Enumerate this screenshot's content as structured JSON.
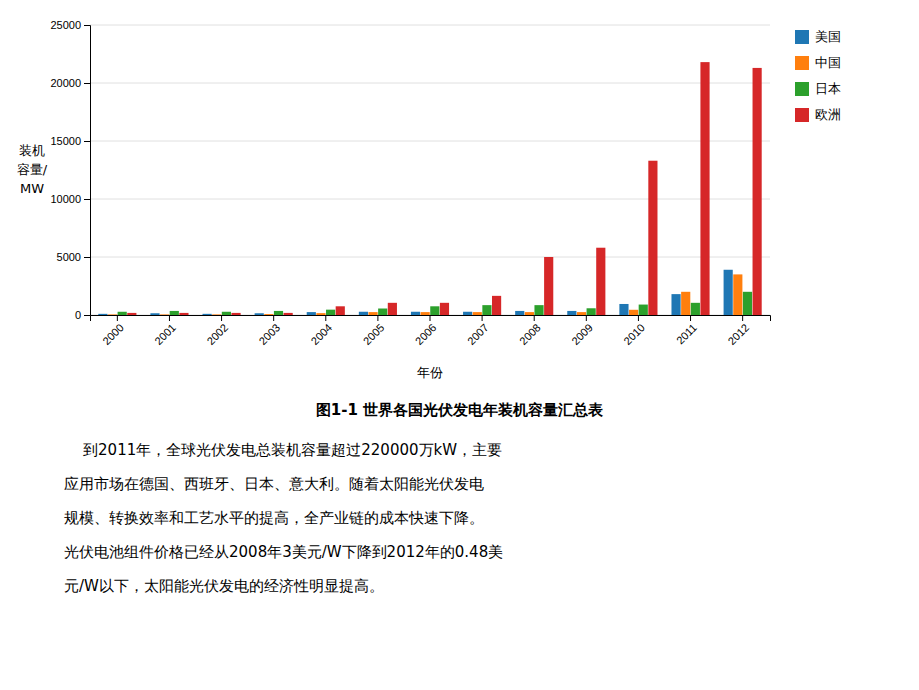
{
  "chart_data": {
    "type": "bar",
    "title": "图1-1  世界各国光伏发电年装机容量汇总表",
    "xlabel": "年份",
    "ylabel": [
      "装机",
      "容量/",
      "MW"
    ],
    "categories": [
      "2000",
      "2001",
      "2002",
      "2003",
      "2004",
      "2005",
      "2006",
      "2007",
      "2008",
      "2009",
      "2010",
      "2011",
      "2012"
    ],
    "series": [
      {
        "name": "美国",
        "values": [
          100,
          150,
          100,
          150,
          250,
          280,
          280,
          280,
          350,
          350,
          950,
          1800,
          3900
        ]
      },
      {
        "name": "中国",
        "values": [
          50,
          50,
          50,
          80,
          160,
          250,
          250,
          250,
          250,
          250,
          450,
          2000,
          3500
        ]
      },
      {
        "name": "日本",
        "values": [
          280,
          350,
          280,
          350,
          460,
          560,
          750,
          850,
          850,
          580,
          900,
          1050,
          2000
        ]
      },
      {
        "name": "欧洲",
        "values": [
          180,
          180,
          180,
          180,
          750,
          1050,
          1050,
          1650,
          5000,
          5800,
          13300,
          21800,
          21300
        ]
      }
    ],
    "ylim": [
      0,
      25000
    ],
    "yticks": [
      0,
      5000,
      10000,
      15000,
      20000,
      25000
    ],
    "grid": true,
    "legend": "right",
    "annotations": [
      "    到2011年，全球光伏发电总装机容量超过220000万kW，主要",
      "应用市场在德国、西班牙、日本、意大利。随着太阳能光伏发电",
      "规模、转换效率和工艺水平的提高，全产业链的成本快速下降。",
      "光伏电池组件价格已经从2008年3美元/W下降到2012年的0.48美",
      "元/W以下，太阳能光伏发电的经济性明显提高。"
    ]
  }
}
